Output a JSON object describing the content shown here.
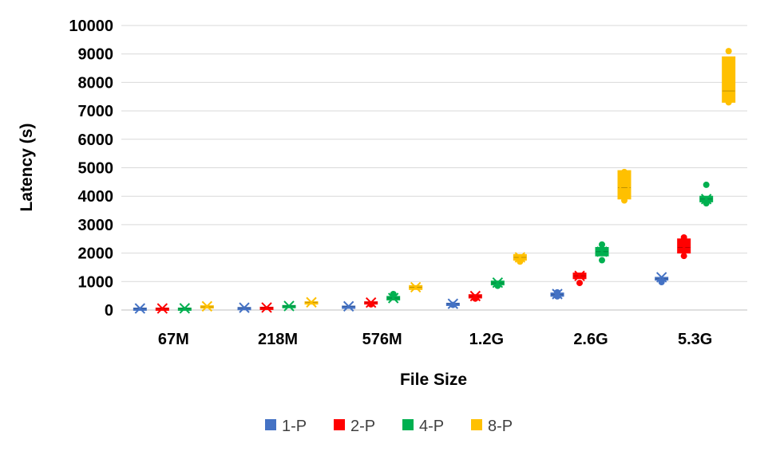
{
  "chart_data": {
    "type": "box",
    "title": "",
    "xlabel": "File Size",
    "ylabel": "Latency (s)",
    "ylim": [
      0,
      10000
    ],
    "yticks": [
      0,
      1000,
      2000,
      3000,
      4000,
      5000,
      6000,
      7000,
      8000,
      9000,
      10000
    ],
    "grid": true,
    "legend_position": "bottom",
    "categories": [
      "67M",
      "218M",
      "576M",
      "1.2G",
      "2.6G",
      "5.3G"
    ],
    "series": [
      {
        "name": "1-P",
        "color": "#4472C4",
        "boxes": [
          {
            "q1": 40,
            "median": 55,
            "q3": 70,
            "mean": 55,
            "outliers": []
          },
          {
            "q1": 70,
            "median": 80,
            "q3": 90,
            "mean": 80,
            "outliers": []
          },
          {
            "q1": 120,
            "median": 130,
            "q3": 140,
            "mean": 130,
            "outliers": []
          },
          {
            "q1": 200,
            "median": 220,
            "q3": 240,
            "mean": 220,
            "outliers": [
              180
            ]
          },
          {
            "q1": 480,
            "median": 540,
            "q3": 600,
            "mean": 560,
            "outliers": [
              480,
              620
            ]
          },
          {
            "q1": 1050,
            "median": 1100,
            "q3": 1150,
            "mean": 1150,
            "outliers": [
              980
            ]
          }
        ]
      },
      {
        "name": "2-P",
        "color": "#FF0000",
        "boxes": [
          {
            "q1": 40,
            "median": 55,
            "q3": 70,
            "mean": 55,
            "outliers": []
          },
          {
            "q1": 70,
            "median": 85,
            "q3": 100,
            "mean": 85,
            "outliers": []
          },
          {
            "q1": 230,
            "median": 260,
            "q3": 290,
            "mean": 260,
            "outliers": [
              200
            ]
          },
          {
            "q1": 420,
            "median": 480,
            "q3": 540,
            "mean": 490,
            "outliers": [
              400
            ]
          },
          {
            "q1": 1100,
            "median": 1200,
            "q3": 1300,
            "mean": 1200,
            "outliers": [
              950
            ]
          },
          {
            "q1": 2000,
            "median": 2200,
            "q3": 2500,
            "mean": 2200,
            "outliers": [
              1900,
              2550
            ]
          }
        ]
      },
      {
        "name": "4-P",
        "color": "#00B050",
        "boxes": [
          {
            "q1": 50,
            "median": 60,
            "q3": 70,
            "mean": 60,
            "outliers": []
          },
          {
            "q1": 120,
            "median": 140,
            "q3": 160,
            "mean": 140,
            "outliers": []
          },
          {
            "q1": 350,
            "median": 420,
            "q3": 480,
            "mean": 420,
            "outliers": [
              560
            ]
          },
          {
            "q1": 880,
            "median": 950,
            "q3": 1020,
            "mean": 960,
            "outliers": [
              850
            ]
          },
          {
            "q1": 1900,
            "median": 2050,
            "q3": 2200,
            "mean": 2050,
            "outliers": [
              1750,
              2300
            ]
          },
          {
            "q1": 3800,
            "median": 3900,
            "q3": 4000,
            "mean": 3900,
            "outliers": [
              4400,
              3750
            ]
          }
        ]
      },
      {
        "name": "8-P",
        "color": "#FFC000",
        "boxes": [
          {
            "q1": 80,
            "median": 110,
            "q3": 150,
            "mean": 130,
            "outliers": []
          },
          {
            "q1": 250,
            "median": 270,
            "q3": 290,
            "mean": 270,
            "outliers": []
          },
          {
            "q1": 720,
            "median": 800,
            "q3": 860,
            "mean": 800,
            "outliers": []
          },
          {
            "q1": 1750,
            "median": 1850,
            "q3": 1950,
            "mean": 1850,
            "outliers": [
              1700
            ]
          },
          {
            "q1": 3900,
            "median": 4300,
            "q3": 4900,
            "mean": 4450,
            "outliers": [
              3850,
              4850
            ]
          },
          {
            "q1": 7300,
            "median": 7700,
            "q3": 8900,
            "mean": 8100,
            "outliers": [
              7300,
              8750,
              9100
            ]
          }
        ]
      }
    ]
  }
}
